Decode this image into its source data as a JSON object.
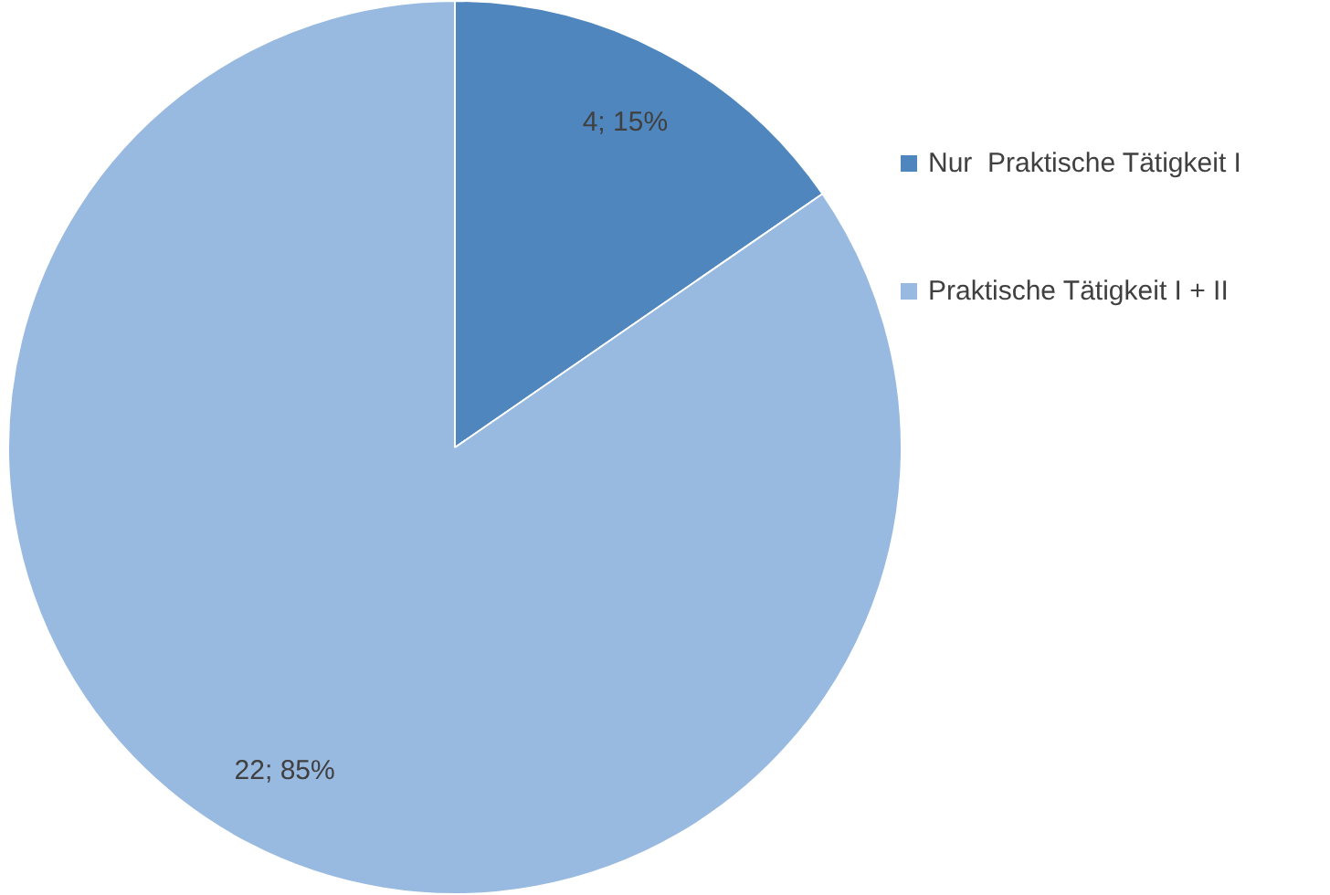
{
  "chart_data": {
    "type": "pie",
    "categories": [
      "Nur  Praktische Tätigkeit I",
      "Praktische Tätigkeit I + II"
    ],
    "values": [
      4,
      22
    ],
    "colors": [
      "#4f86be",
      "#98b9e0"
    ],
    "value_labels": [
      "4; 15%",
      "22; 85%"
    ],
    "legend": "right"
  }
}
